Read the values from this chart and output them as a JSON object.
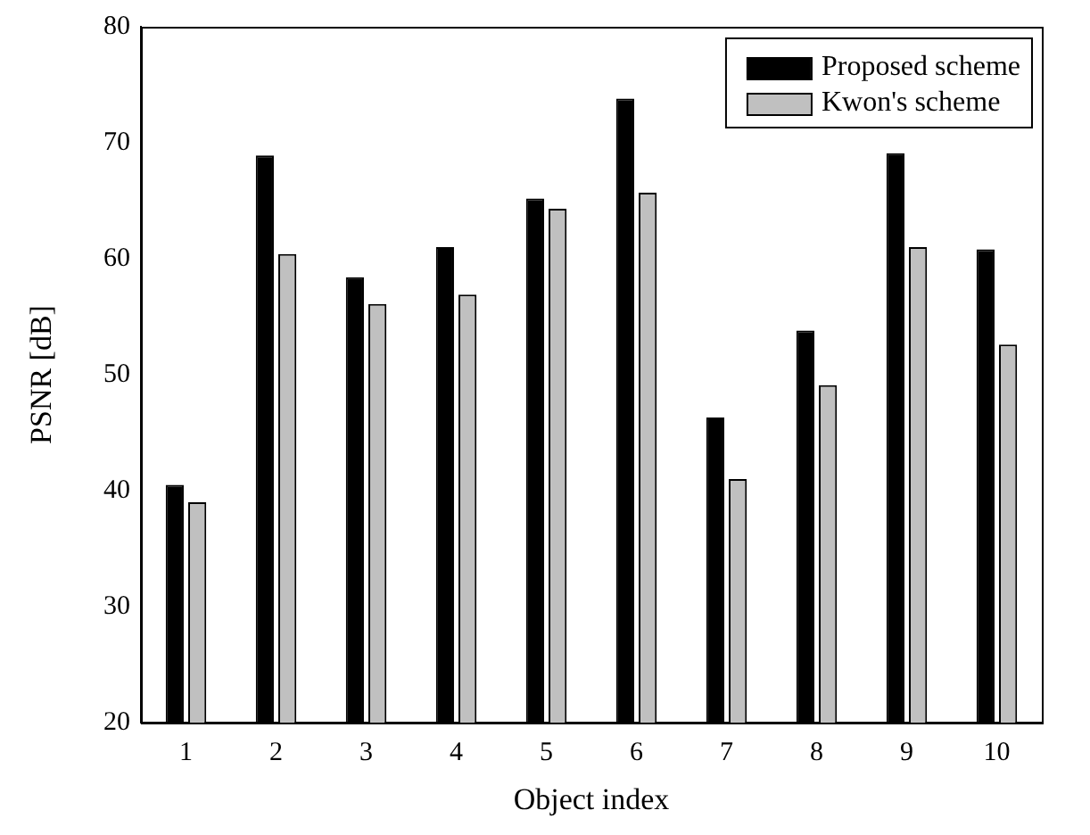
{
  "chart_data": {
    "type": "bar",
    "xlabel": "Object index",
    "ylabel": "PSNR [dB]",
    "categories": [
      "1",
      "2",
      "3",
      "4",
      "5",
      "6",
      "7",
      "8",
      "9",
      "10"
    ],
    "series": [
      {
        "name": "Proposed scheme",
        "color": "#000000",
        "values": [
          40.5,
          68.9,
          58.4,
          61.0,
          65.2,
          73.8,
          46.3,
          53.8,
          69.1,
          60.8
        ]
      },
      {
        "name": "Kwon's scheme",
        "color": "#c0c0c0",
        "values": [
          39.0,
          60.4,
          56.1,
          56.9,
          64.3,
          65.7,
          41.0,
          49.1,
          61.0,
          52.6
        ]
      }
    ],
    "ylim": [
      20,
      80
    ],
    "yticks": [
      20,
      30,
      40,
      50,
      60,
      70,
      80
    ],
    "grid": false,
    "legend": "top right"
  }
}
